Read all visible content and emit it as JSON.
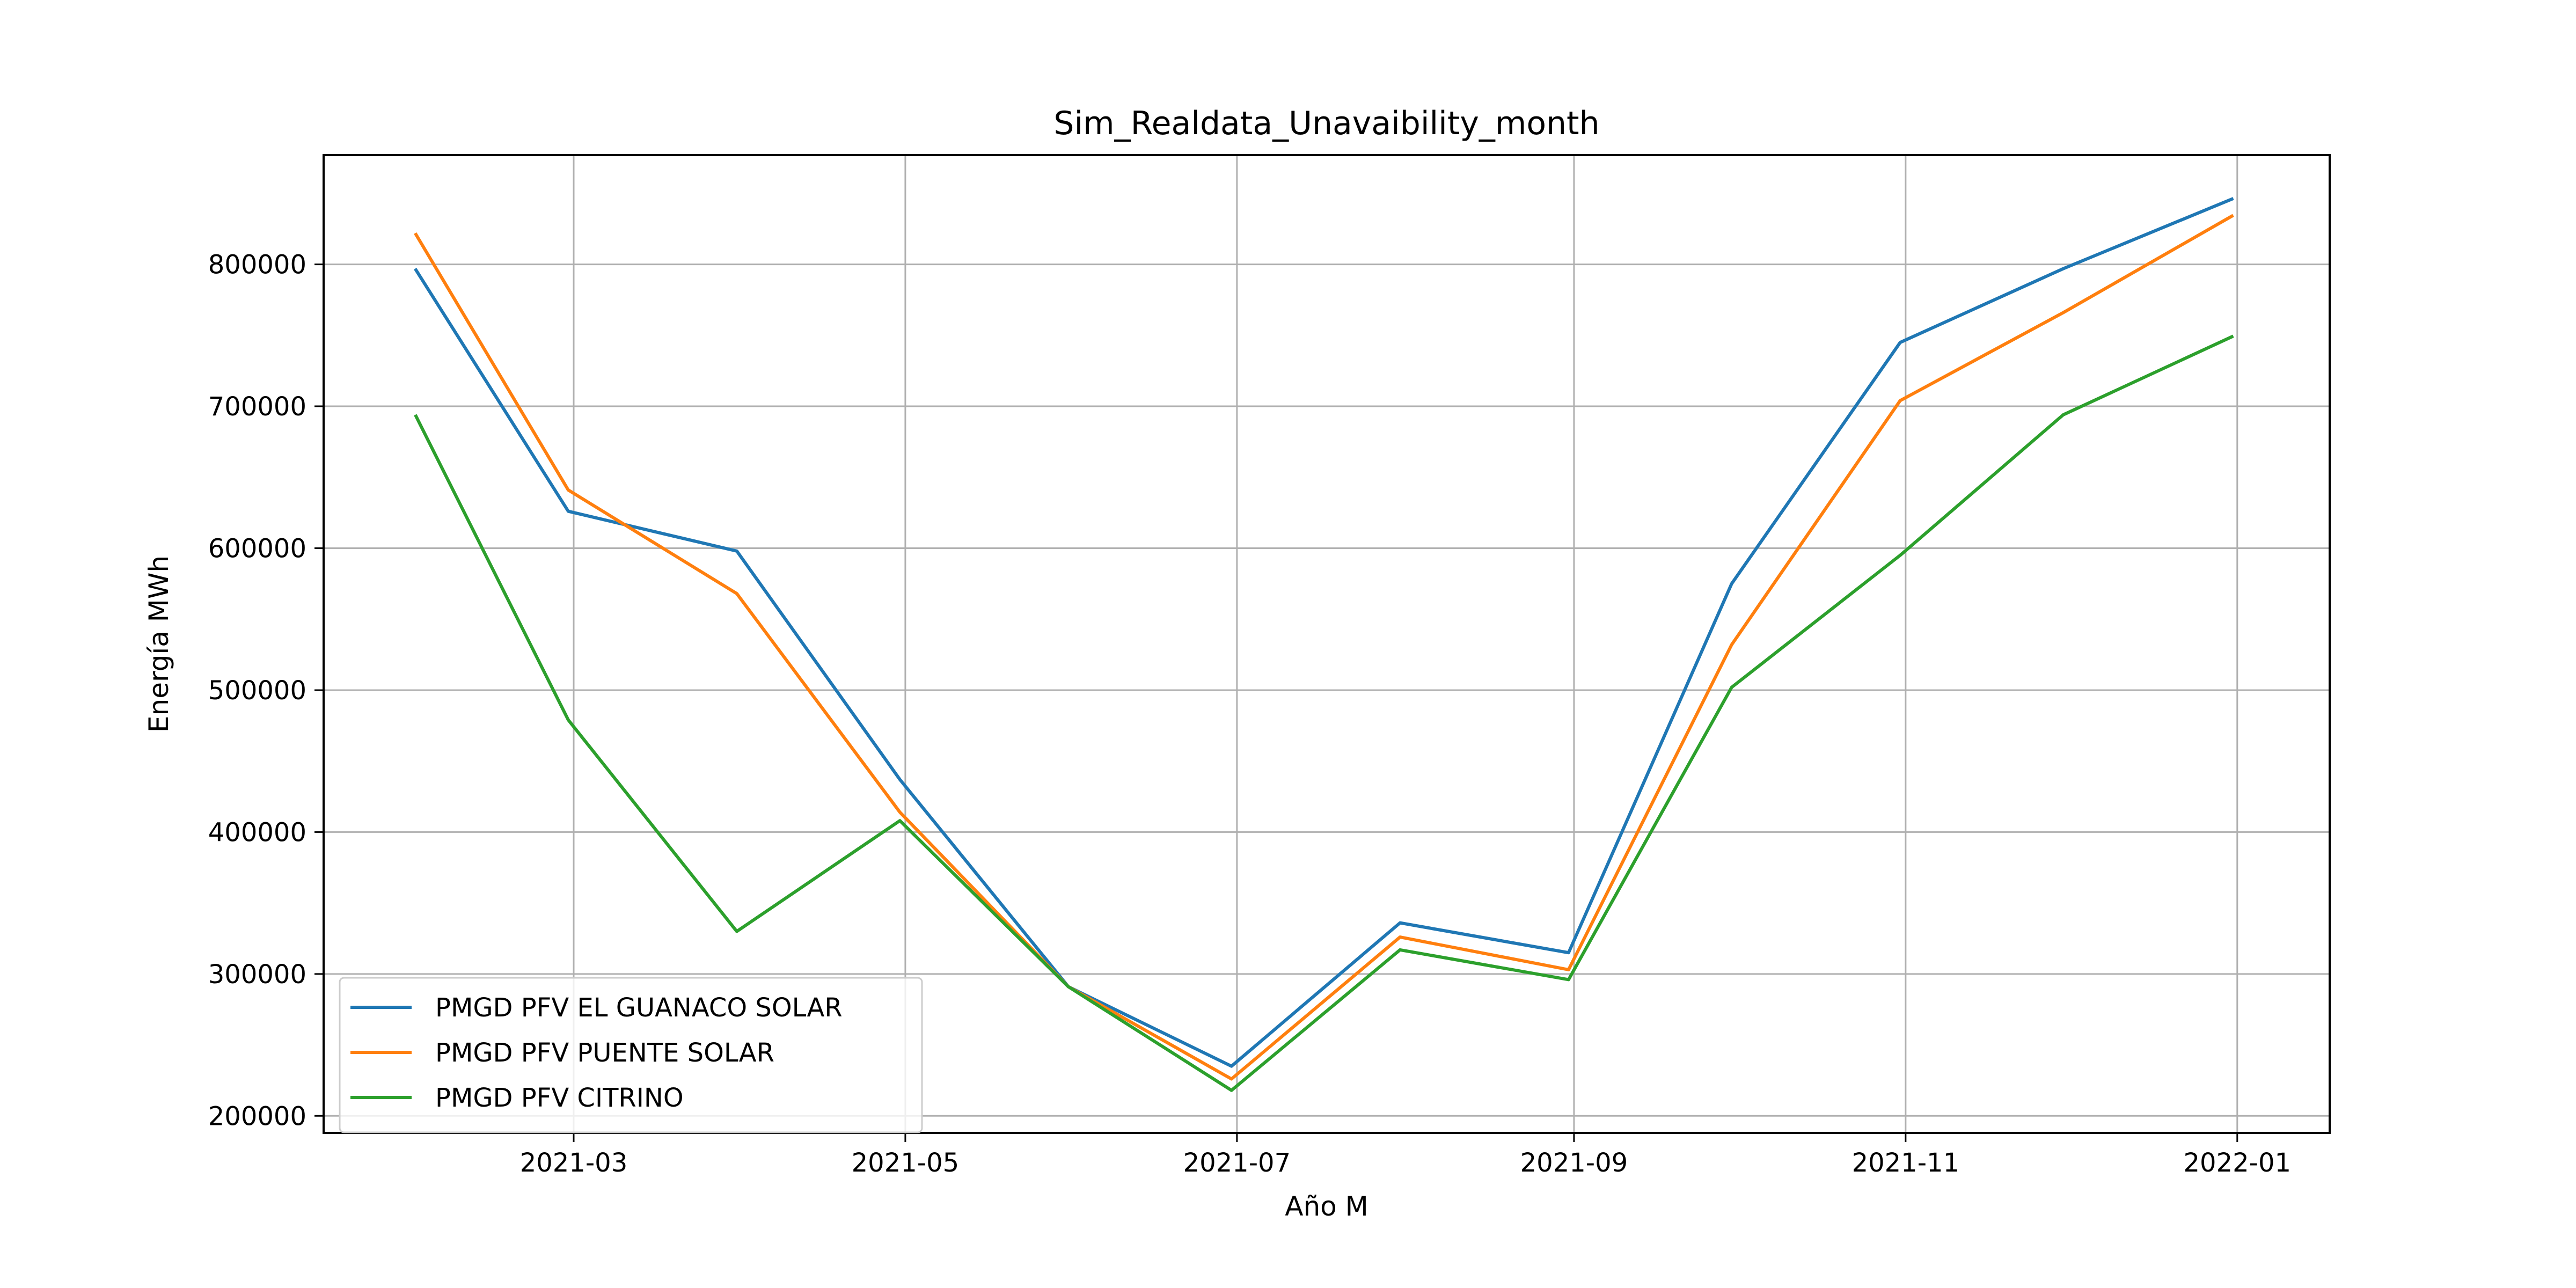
{
  "chart_data": {
    "type": "line",
    "title": "Sim_Realdata_Unavaibility_month",
    "xlabel": "Año M",
    "ylabel": "Energía MWh",
    "x": [
      "2021-01-31",
      "2021-02-28",
      "2021-03-31",
      "2021-04-30",
      "2021-05-31",
      "2021-06-30",
      "2021-07-31",
      "2021-08-31",
      "2021-09-30",
      "2021-10-31",
      "2021-11-30",
      "2021-12-31"
    ],
    "series": [
      {
        "name": "PMGD PFV EL GUANACO SOLAR",
        "color": "#1f77b4",
        "values": [
          796000,
          626000,
          598000,
          437000,
          291000,
          235000,
          336000,
          315000,
          575000,
          745000,
          797000,
          846000
        ]
      },
      {
        "name": "PMGD PFV PUENTE SOLAR",
        "color": "#ff7f0e",
        "values": [
          821000,
          641000,
          568000,
          414000,
          291000,
          226000,
          326000,
          303000,
          532000,
          704000,
          766000,
          834000
        ]
      },
      {
        "name": "PMGD PFV CITRINO",
        "color": "#2ca02c",
        "values": [
          693000,
          479000,
          330000,
          408000,
          291000,
          218000,
          317000,
          296000,
          502000,
          595000,
          694000,
          749000
        ]
      }
    ],
    "xticks": [
      "2021-03-01",
      "2021-05-01",
      "2021-07-01",
      "2021-09-01",
      "2021-11-01",
      "2022-01-01"
    ],
    "xtick_labels": [
      "2021-03",
      "2021-05",
      "2021-07",
      "2021-09",
      "2021-11",
      "2022-01"
    ],
    "xlim": [
      "2021-01-14",
      "2022-01-18"
    ],
    "yticks": [
      200000,
      300000,
      400000,
      500000,
      600000,
      700000,
      800000
    ],
    "ytick_labels": [
      "200000",
      "300000",
      "400000",
      "500000",
      "600000",
      "700000",
      "800000"
    ],
    "ylim": [
      188000,
      877000
    ],
    "grid": true,
    "legend_position": "lower-left"
  }
}
